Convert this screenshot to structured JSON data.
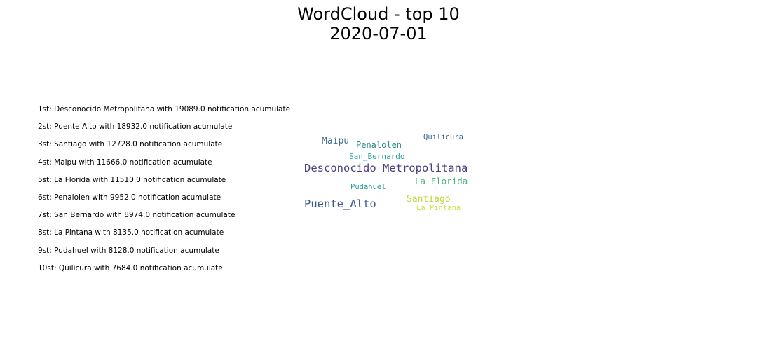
{
  "chart_data": {
    "type": "wordcloud",
    "title": "WordCloud - top 10",
    "subtitle": "2020-07-01",
    "ranking": [
      {
        "text": "1st: Desconocido Metropolitana with 19089.0 notification acumulate"
      },
      {
        "text": "2st: Puente Alto with 18932.0 notification acumulate"
      },
      {
        "text": "3st: Santiago with 12728.0 notification acumulate"
      },
      {
        "text": "4st: Maipu with 11666.0 notification acumulate"
      },
      {
        "text": "5st: La Florida with 11510.0 notification acumulate"
      },
      {
        "text": "6st: Penalolen with 9952.0 notification acumulate"
      },
      {
        "text": "7st: San Bernardo with 8974.0 notification acumulate"
      },
      {
        "text": "8st: La Pintana with 8135.0 notification acumulate"
      },
      {
        "text": "9st: Pudahuel with 8128.0 notification acumulate"
      },
      {
        "text": "10st: Quilicura with 7684.0 notification acumulate"
      }
    ],
    "words": [
      {
        "word": "Desconocido_Metropolitana",
        "value": 19089.0,
        "color": "#4a3d82"
      },
      {
        "word": "Puente_Alto",
        "value": 18932.0,
        "color": "#3d5889"
      },
      {
        "word": "Santiago",
        "value": 12728.0,
        "color": "#c2d640"
      },
      {
        "word": "Maipu",
        "value": 11666.0,
        "color": "#3f6f94"
      },
      {
        "word": "La_Florida",
        "value": 11510.0,
        "color": "#45b577"
      },
      {
        "word": "Penalolen",
        "value": 9952.0,
        "color": "#2a8d8c"
      },
      {
        "word": "San_Bernardo",
        "value": 8974.0,
        "color": "#2aa19a"
      },
      {
        "word": "La_Pintana",
        "value": 8135.0,
        "color": "#d6e04a"
      },
      {
        "word": "Pudahuel",
        "value": 8128.0,
        "color": "#25a39a"
      },
      {
        "word": "Quilicura",
        "value": 7684.0,
        "color": "#3a6790"
      }
    ]
  }
}
